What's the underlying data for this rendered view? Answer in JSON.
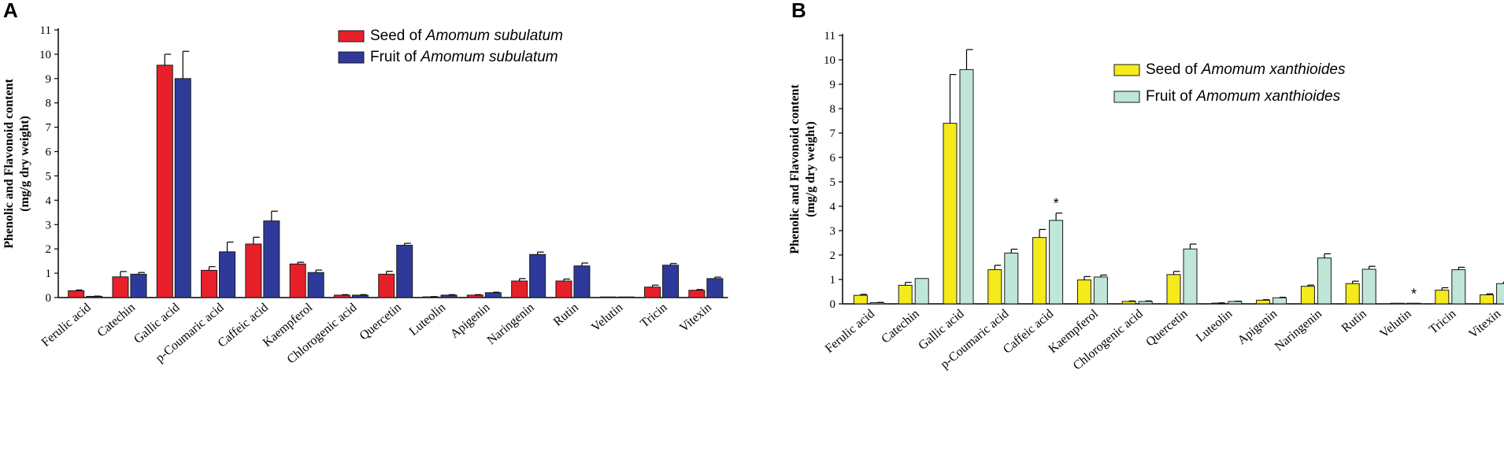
{
  "chart_data": [
    {
      "panel": "A",
      "type": "bar",
      "ylabel_line1": "Phenolic and Flavonoid content",
      "ylabel_line2": "(mg/g dry weight)",
      "ylim": [
        0,
        11
      ],
      "yticks": [
        0,
        1,
        2,
        3,
        4,
        5,
        6,
        7,
        8,
        9,
        10,
        11
      ],
      "categories": [
        "Ferulic acid",
        "Catechin",
        "Gallic acid",
        "p-Coumaric acid",
        "Caffeic acid",
        "Kaempferol",
        "Chlorogenic acid",
        "Quercetin",
        "Luteolin",
        "Apigenin",
        "Naringenin",
        "Rutin",
        "Velutin",
        "Tricin",
        "Vitexin"
      ],
      "series": [
        {
          "name": "Seed of Amomum subulatum",
          "legend_prefix": "Seed of ",
          "legend_species": "Amomum subulatum",
          "color": "#e8202a",
          "values": [
            0.28,
            0.85,
            9.55,
            1.12,
            2.2,
            1.38,
            0.1,
            0.96,
            0.03,
            0.1,
            0.68,
            0.68,
            0.0,
            0.43,
            0.3
          ],
          "errors": [
            0.03,
            0.22,
            0.45,
            0.15,
            0.28,
            0.07,
            0.02,
            0.12,
            0.01,
            0.02,
            0.1,
            0.08,
            0.0,
            0.08,
            0.03
          ]
        },
        {
          "name": "Fruit of Amomum subulatum",
          "legend_prefix": "Fruit of ",
          "legend_species": "Amomum subulatum",
          "color": "#2e3a9a",
          "values": [
            0.05,
            0.96,
            9.0,
            1.88,
            3.15,
            1.03,
            0.1,
            2.15,
            0.1,
            0.2,
            1.77,
            1.3,
            0.0,
            1.33,
            0.78
          ],
          "errors": [
            0.01,
            0.07,
            1.12,
            0.4,
            0.4,
            0.1,
            0.02,
            0.08,
            0.02,
            0.02,
            0.1,
            0.12,
            0.0,
            0.07,
            0.06
          ]
        }
      ],
      "significance": []
    },
    {
      "panel": "B",
      "type": "bar",
      "ylabel_line1": "Phenolic and Flavonoid content",
      "ylabel_line2": "(mg/g dry weight)",
      "ylim": [
        0,
        11
      ],
      "yticks": [
        0,
        1,
        2,
        3,
        4,
        5,
        6,
        7,
        8,
        9,
        10,
        11
      ],
      "categories": [
        "Ferulic acid",
        "Catechin",
        "Gallic acid",
        "p-Coumaric acid",
        "Caffeic acid",
        "Kaempferol",
        "Chlorogenic acid",
        "Quercetin",
        "Luteolin",
        "Apigenin",
        "Naringenin",
        "Rutin",
        "Velutin",
        "Tricin",
        "Vitexin"
      ],
      "series": [
        {
          "name": "Seed of Amomum xanthioides",
          "legend_prefix": "Seed of ",
          "legend_species": "Amomum xanthioides",
          "color": "#f4ea1c",
          "values": [
            0.35,
            0.76,
            7.4,
            1.4,
            2.72,
            0.98,
            0.1,
            1.2,
            0.03,
            0.15,
            0.72,
            0.83,
            0.02,
            0.56,
            0.37
          ],
          "errors": [
            0.04,
            0.12,
            2.0,
            0.18,
            0.33,
            0.14,
            0.02,
            0.13,
            0.01,
            0.02,
            0.05,
            0.1,
            0.0,
            0.1,
            0.04
          ]
        },
        {
          "name": "Fruit of Amomum xanthioides",
          "legend_prefix": "Fruit of ",
          "legend_species": "Amomum xanthioides",
          "color": "#bfe6d6",
          "values": [
            0.05,
            1.04,
            9.6,
            2.08,
            3.42,
            1.1,
            0.1,
            2.25,
            0.1,
            0.25,
            1.88,
            1.42,
            0.02,
            1.4,
            0.83
          ],
          "errors": [
            0.01,
            0.0,
            0.82,
            0.16,
            0.3,
            0.08,
            0.02,
            0.2,
            0.01,
            0.02,
            0.17,
            0.12,
            0.0,
            0.1,
            0.06
          ]
        }
      ],
      "significance": [
        {
          "category_index": 4,
          "series_index": 1,
          "symbol": "*"
        },
        {
          "category_index": 12,
          "series_index": 1,
          "symbol": "*"
        }
      ]
    }
  ]
}
